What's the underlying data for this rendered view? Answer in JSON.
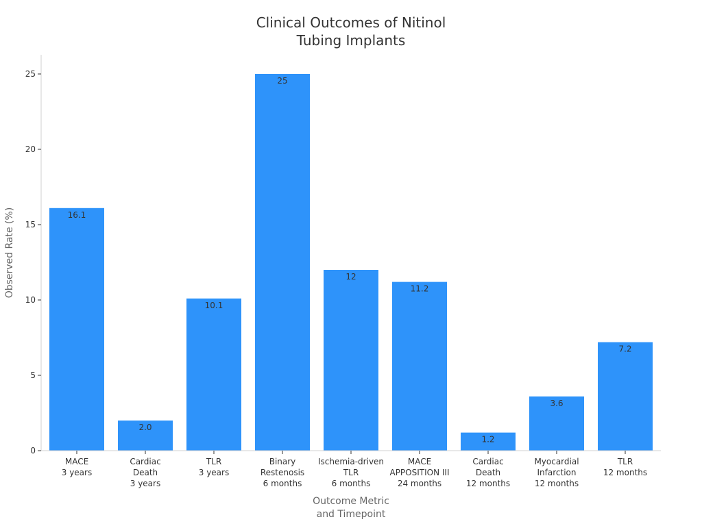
{
  "chart_data": {
    "type": "bar",
    "title": [
      "Clinical Outcomes of Nitinol",
      "Tubing Implants"
    ],
    "xlabel": [
      "Outcome Metric",
      "and Timepoint"
    ],
    "ylabel": "Observed Rate (%)",
    "ylim": [
      0,
      25
    ],
    "yticks": [
      "0",
      "5",
      "10",
      "15",
      "20",
      "25"
    ],
    "grid": false,
    "bar_color": "#2e93fa",
    "categories": [
      [
        "MACE",
        "3 years"
      ],
      [
        "Cardiac",
        "Death",
        "3 years"
      ],
      [
        "TLR",
        "3 years"
      ],
      [
        "Binary",
        "Restenosis",
        "6 months"
      ],
      [
        "Ischemia-driven",
        "TLR",
        "6 months"
      ],
      [
        "MACE",
        "APPOSITION III",
        "24 months"
      ],
      [
        "Cardiac",
        "Death",
        "12 months"
      ],
      [
        "Myocardial",
        "Infarction",
        "12 months"
      ],
      [
        "TLR",
        "12 months"
      ]
    ],
    "values": [
      16.1,
      2.0,
      10.1,
      25,
      12,
      11.2,
      1.2,
      3.6,
      7.2
    ],
    "data_labels": [
      "16.1",
      "2.0",
      "10.1",
      "25",
      "12",
      "11.2",
      "1.2",
      "3.6",
      "7.2"
    ]
  }
}
